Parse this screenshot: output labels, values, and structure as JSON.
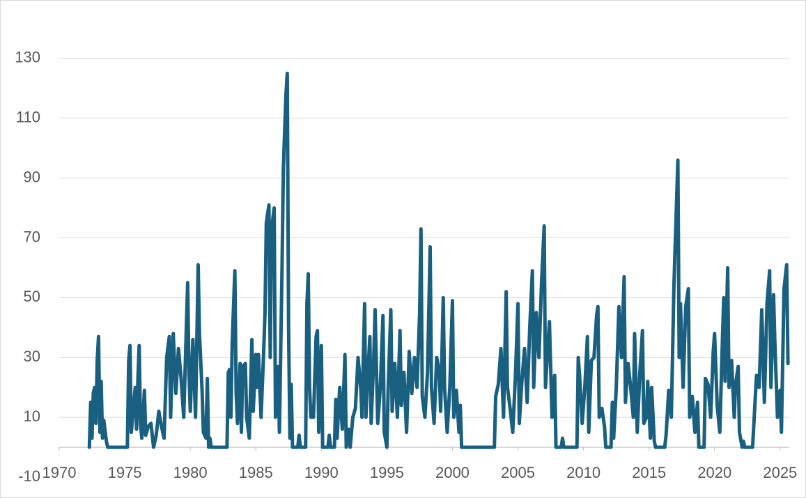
{
  "chart_data": {
    "type": "line",
    "color": "#195f80",
    "grid": true,
    "xlim": [
      1970,
      2025.7
    ],
    "xticks": [
      1970,
      1975,
      1980,
      1985,
      1990,
      1995,
      2000,
      2005,
      2010,
      2015,
      2020,
      2025
    ],
    "ylim": [
      -10,
      140
    ],
    "yticks": [
      -10,
      10,
      30,
      50,
      70,
      90,
      110,
      130
    ],
    "x": [
      1972.3,
      1972.4,
      1972.5,
      1972.6,
      1972.7,
      1972.8,
      1972.9,
      1973.0,
      1973.1,
      1973.2,
      1973.3,
      1973.4,
      1973.6,
      1973.7,
      1975.2,
      1975.3,
      1975.4,
      1975.5,
      1975.6,
      1975.8,
      1975.9,
      1976.0,
      1976.1,
      1976.2,
      1976.3,
      1976.5,
      1976.6,
      1976.8,
      1977.0,
      1977.2,
      1977.4,
      1977.6,
      1977.8,
      1978.0,
      1978.2,
      1978.4,
      1978.5,
      1978.7,
      1978.9,
      1979.1,
      1979.3,
      1979.5,
      1979.8,
      1979.9,
      1980.0,
      1980.2,
      1980.4,
      1980.6,
      1980.7,
      1980.9,
      1981.0,
      1981.2,
      1981.3,
      1981.4,
      1981.5,
      1981.6,
      1982.8,
      1982.9,
      1983.0,
      1983.1,
      1983.2,
      1983.4,
      1983.5,
      1983.6,
      1983.8,
      1983.9,
      1984.0,
      1984.2,
      1984.3,
      1984.5,
      1984.7,
      1984.8,
      1985.0,
      1985.1,
      1985.2,
      1985.4,
      1985.6,
      1985.7,
      1985.8,
      1986.0,
      1986.1,
      1986.2,
      1986.4,
      1986.5,
      1986.7,
      1986.8,
      1987.0,
      1987.1,
      1987.2,
      1987.3,
      1987.4,
      1987.5,
      1987.6,
      1987.7,
      1987.8,
      1988.2,
      1988.3,
      1988.4,
      1988.8,
      1988.9,
      1989.0,
      1989.1,
      1989.2,
      1989.4,
      1989.6,
      1989.7,
      1989.8,
      1990.0,
      1990.1,
      1990.5,
      1990.6,
      1990.7,
      1991.0,
      1991.1,
      1991.2,
      1991.4,
      1991.6,
      1991.8,
      1991.9,
      1992.1,
      1992.2,
      1992.4,
      1992.6,
      1992.8,
      1993.0,
      1993.1,
      1993.3,
      1993.4,
      1993.5,
      1993.7,
      1993.8,
      1994.0,
      1994.1,
      1994.3,
      1994.5,
      1994.7,
      1994.8,
      1995.0,
      1995.1,
      1995.3,
      1995.4,
      1995.6,
      1995.8,
      1996.0,
      1996.1,
      1996.3,
      1996.5,
      1996.7,
      1996.9,
      1997.1,
      1997.3,
      1997.5,
      1997.6,
      1997.7,
      1997.9,
      1998.1,
      1998.3,
      1998.4,
      1998.6,
      1998.8,
      1999.0,
      1999.1,
      1999.3,
      1999.4,
      1999.6,
      1999.8,
      2000.0,
      2000.1,
      2000.3,
      2000.5,
      2000.6,
      2000.7,
      2003.2,
      2003.3,
      2003.5,
      2003.7,
      2003.9,
      2004.1,
      2004.2,
      2004.4,
      2004.6,
      2004.8,
      2005.0,
      2005.1,
      2005.3,
      2005.5,
      2005.7,
      2005.9,
      2006.1,
      2006.2,
      2006.4,
      2006.6,
      2006.8,
      2007.0,
      2007.1,
      2007.3,
      2007.4,
      2007.6,
      2007.8,
      2007.9,
      2008.3,
      2008.4,
      2008.5,
      2009.5,
      2009.6,
      2009.7,
      2009.9,
      2010.1,
      2010.3,
      2010.4,
      2010.6,
      2010.8,
      2011.0,
      2011.1,
      2011.2,
      2011.4,
      2011.6,
      2011.7,
      2012.1,
      2012.2,
      2012.3,
      2012.5,
      2012.7,
      2012.9,
      2013.1,
      2013.2,
      2013.4,
      2013.6,
      2013.8,
      2013.9,
      2014.1,
      2014.3,
      2014.5,
      2014.6,
      2014.8,
      2014.9,
      2015.1,
      2015.2,
      2015.4,
      2015.5,
      2016.2,
      2016.3,
      2016.5,
      2016.7,
      2016.9,
      2017.0,
      2017.1,
      2017.2,
      2017.3,
      2017.4,
      2017.6,
      2017.8,
      2018.0,
      2018.1,
      2018.3,
      2018.5,
      2018.7,
      2018.8,
      2019.2,
      2019.3,
      2019.5,
      2019.7,
      2019.9,
      2020.0,
      2020.2,
      2020.4,
      2020.6,
      2020.7,
      2020.8,
      2021.0,
      2021.1,
      2021.3,
      2021.5,
      2021.6,
      2021.8,
      2021.9,
      2022.1,
      2022.2,
      2022.3,
      2022.9,
      2023.0,
      2023.2,
      2023.4,
      2023.6,
      2023.8,
      2024.0,
      2024.2,
      2024.3,
      2024.5,
      2024.6,
      2024.8,
      2025.0,
      2025.1,
      2025.3,
      2025.5,
      2025.6
    ],
    "values": [
      0,
      15,
      3,
      18,
      20,
      8,
      29,
      37,
      5,
      22,
      3,
      9,
      2,
      0,
      0,
      29,
      34,
      5,
      10,
      20,
      6,
      22,
      34,
      8,
      3,
      19,
      4,
      7,
      8,
      0,
      4,
      12,
      7,
      3,
      30,
      37,
      10,
      38,
      18,
      33,
      23,
      10,
      55,
      25,
      12,
      36,
      10,
      61,
      38,
      19,
      5,
      3,
      23,
      0,
      3,
      0,
      0,
      25,
      26,
      10,
      35,
      59,
      18,
      8,
      28,
      5,
      27,
      28,
      10,
      3,
      36,
      12,
      31,
      20,
      31,
      10,
      32,
      45,
      75,
      81,
      30,
      73,
      80,
      10,
      27,
      5,
      60,
      93,
      106,
      118,
      125,
      40,
      3,
      21,
      0,
      0,
      4,
      0,
      0,
      48,
      58,
      20,
      10,
      10,
      37,
      39,
      5,
      34,
      0,
      0,
      4,
      0,
      0,
      16,
      3,
      20,
      6,
      31,
      0,
      6,
      0,
      10,
      13,
      30,
      20,
      10,
      48,
      10,
      20,
      37,
      8,
      30,
      46,
      8,
      20,
      44,
      5,
      0,
      20,
      46,
      12,
      28,
      10,
      39,
      14,
      25,
      5,
      32,
      18,
      30,
      20,
      45,
      73,
      17,
      10,
      25,
      67,
      20,
      8,
      30,
      25,
      12,
      50,
      20,
      5,
      20,
      49,
      10,
      19,
      5,
      14,
      0,
      0,
      17,
      21,
      33,
      10,
      52,
      20,
      13,
      5,
      23,
      48,
      8,
      22,
      33,
      15,
      40,
      59,
      20,
      45,
      30,
      55,
      74,
      20,
      35,
      42,
      10,
      24,
      0,
      0,
      3,
      0,
      0,
      30,
      24,
      8,
      20,
      37,
      5,
      29,
      30,
      44,
      47,
      10,
      13,
      7,
      0,
      0,
      15,
      3,
      20,
      47,
      30,
      57,
      15,
      28,
      20,
      10,
      38,
      5,
      25,
      39,
      8,
      10,
      22,
      3,
      20,
      2,
      0,
      0,
      4,
      19,
      10,
      54,
      68,
      82,
      96,
      30,
      48,
      20,
      47,
      53,
      10,
      17,
      5,
      15,
      0,
      0,
      23,
      21,
      10,
      32,
      38,
      14,
      5,
      36,
      50,
      22,
      60,
      20,
      29,
      10,
      21,
      27,
      5,
      0,
      2,
      0,
      0,
      8,
      24,
      20,
      46,
      15,
      48,
      59,
      20,
      51,
      35,
      10,
      19,
      5,
      53,
      61,
      28
    ]
  }
}
